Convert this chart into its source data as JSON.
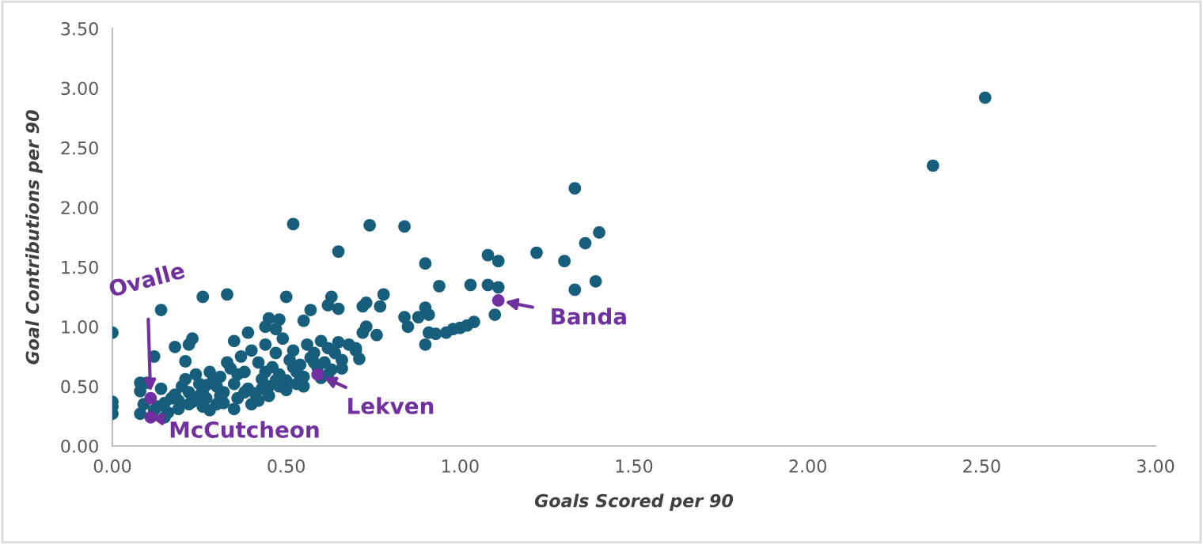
{
  "chart_data": {
    "type": "scatter",
    "xlabel": "Goals Scored per 90",
    "ylabel": "Goal Contributions per 90",
    "xlim": [
      0,
      3
    ],
    "ylim": [
      0,
      3.5
    ],
    "xticks": [
      {
        "value": 0,
        "label": "0.00"
      },
      {
        "value": 0.5,
        "label": "0.50"
      },
      {
        "value": 1,
        "label": "1.00"
      },
      {
        "value": 1.5,
        "label": "1.50"
      },
      {
        "value": 2,
        "label": "2.00"
      },
      {
        "value": 2.5,
        "label": "2.50"
      },
      {
        "value": 3,
        "label": "3.00"
      }
    ],
    "yticks": [
      {
        "value": 0,
        "label": "0.00"
      },
      {
        "value": 0.5,
        "label": "0.50"
      },
      {
        "value": 1,
        "label": "1.00"
      },
      {
        "value": 1.5,
        "label": "1.50"
      },
      {
        "value": 2,
        "label": "2.00"
      },
      {
        "value": 2.5,
        "label": "2.50"
      },
      {
        "value": 3,
        "label": "3.00"
      },
      {
        "value": 3.5,
        "label": "3.50"
      }
    ],
    "grid": false,
    "legend": false,
    "marker": "circle",
    "series": [
      {
        "color": "#175e7c",
        "x": [
          2.51,
          2.36,
          1.33,
          1.4,
          1.36,
          1.3,
          1.22,
          1.08,
          1.11,
          1.03,
          0.94,
          0.84,
          0.74,
          0.52,
          0.65,
          0.9,
          0.78,
          0.77,
          1.39,
          1.33,
          1.11,
          1.08,
          1.1,
          0.0,
          0.14,
          0.26,
          0.33,
          0.5,
          0.9,
          0.91,
          0.93,
          0.96,
          0.98,
          1.0,
          1.02,
          1.04,
          0.9,
          0.91,
          0.85,
          0.88,
          0.72,
          0.73,
          0.62,
          0.65,
          0.63,
          0.57,
          0.55,
          0.48,
          0.47,
          0.44,
          0.45,
          0.39,
          0.35,
          0.22,
          0.23,
          0.18,
          0.12,
          0.21,
          0.0,
          0.0,
          0.0,
          0.08,
          0.09,
          0.08,
          0.08,
          0.1,
          0.12,
          0.13,
          0.15,
          0.17,
          0.18,
          0.19,
          0.2,
          0.21,
          0.22,
          0.23,
          0.24,
          0.25,
          0.26,
          0.27,
          0.28,
          0.29,
          0.3,
          0.31,
          0.32,
          0.33,
          0.34,
          0.35,
          0.36,
          0.37,
          0.38,
          0.39,
          0.4,
          0.41,
          0.42,
          0.43,
          0.44,
          0.45,
          0.46,
          0.47,
          0.48,
          0.49,
          0.5,
          0.51,
          0.52,
          0.53,
          0.54,
          0.55,
          0.56,
          0.57,
          0.58,
          0.59,
          0.6,
          0.61,
          0.62,
          0.63,
          0.64,
          0.65,
          0.66,
          0.68,
          0.7,
          0.72,
          0.73,
          0.71,
          0.76,
          0.84,
          0.35,
          0.42,
          0.4,
          0.5,
          0.55,
          0.15,
          0.16,
          0.26,
          0.28,
          0.32,
          0.45,
          0.47,
          0.6,
          0.38,
          0.3,
          0.25,
          0.14,
          0.27,
          0.36,
          0.43,
          0.53,
          0.48,
          0.62,
          0.66,
          0.7,
          0.58,
          0.52,
          0.44,
          0.31,
          0.22,
          0.19
        ],
        "values": [
          2.92,
          2.35,
          2.16,
          1.79,
          1.7,
          1.55,
          1.62,
          1.6,
          1.55,
          1.35,
          1.34,
          1.84,
          1.85,
          1.86,
          1.63,
          1.53,
          1.27,
          1.17,
          1.38,
          1.31,
          1.33,
          1.35,
          1.1,
          0.95,
          1.14,
          1.25,
          1.27,
          1.25,
          0.85,
          0.95,
          0.94,
          0.95,
          0.98,
          0.99,
          1.01,
          1.04,
          1.16,
          1.1,
          1.0,
          1.08,
          1.17,
          1.2,
          1.18,
          1.15,
          1.25,
          1.14,
          1.05,
          1.06,
          0.98,
          1.0,
          1.07,
          0.95,
          0.88,
          0.85,
          0.9,
          0.83,
          0.75,
          0.71,
          0.37,
          0.33,
          0.27,
          0.27,
          0.35,
          0.46,
          0.53,
          0.53,
          0.3,
          0.33,
          0.36,
          0.4,
          0.43,
          0.31,
          0.5,
          0.56,
          0.45,
          0.37,
          0.6,
          0.52,
          0.47,
          0.4,
          0.62,
          0.55,
          0.35,
          0.58,
          0.45,
          0.7,
          0.65,
          0.52,
          0.4,
          0.75,
          0.62,
          0.48,
          0.8,
          0.44,
          0.7,
          0.56,
          0.85,
          0.5,
          0.66,
          0.78,
          0.6,
          0.9,
          0.55,
          0.72,
          0.8,
          0.62,
          0.68,
          0.58,
          0.85,
          0.74,
          0.78,
          0.66,
          0.88,
          0.7,
          0.82,
          0.64,
          0.78,
          0.87,
          0.72,
          0.85,
          0.8,
          0.95,
          1.0,
          0.73,
          0.93,
          1.08,
          0.31,
          0.38,
          0.35,
          0.47,
          0.5,
          0.24,
          0.28,
          0.33,
          0.3,
          0.36,
          0.42,
          0.55,
          0.57,
          0.45,
          0.5,
          0.42,
          0.48,
          0.51,
          0.6,
          0.48,
          0.52,
          0.5,
          0.6,
          0.65,
          0.82,
          0.7,
          0.66,
          0.62,
          0.42,
          0.35,
          0.38
        ]
      },
      {
        "color": "#7030a0",
        "x": [
          0.11,
          0.11,
          0.59,
          1.11
        ],
        "values": [
          0.4,
          0.24,
          0.6,
          1.22
        ]
      }
    ],
    "annotations": [
      {
        "text": "Ovalle",
        "x": 0.11,
        "y": 0.4
      },
      {
        "text": "McCutcheon",
        "x": 0.11,
        "y": 0.24
      },
      {
        "text": "Lekven",
        "x": 0.59,
        "y": 0.6
      },
      {
        "text": "Banda",
        "x": 1.11,
        "y": 1.22
      }
    ]
  }
}
